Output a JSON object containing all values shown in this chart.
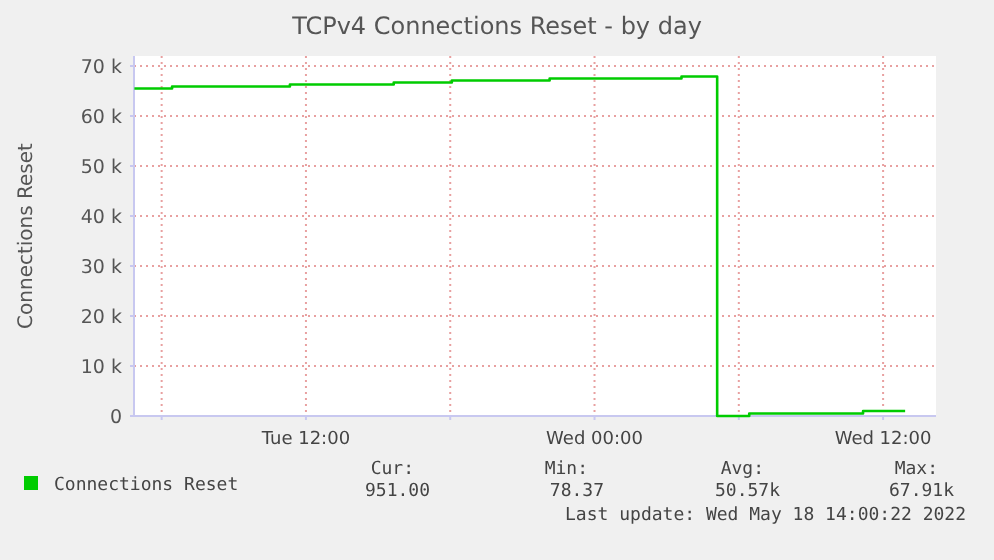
{
  "chart_data": {
    "type": "step",
    "title": "TCPv4 Connections Reset - by day",
    "ylabel": "Connections Reset",
    "x": [
      "2022-05-17T04:52",
      "2022-05-17T06:26",
      "2022-05-17T11:20",
      "2022-05-17T15:39",
      "2022-05-17T18:04",
      "2022-05-17T22:08",
      "2022-05-18T03:37",
      "2022-05-18T05:06",
      "2022-05-18T06:26",
      "2022-05-18T11:10",
      "2022-05-18T12:55"
    ],
    "series": [
      {
        "name": "Connections Reset",
        "color": "#00cc00",
        "values": [
          65500,
          65900,
          66300,
          66700,
          67100,
          67500,
          67900,
          0,
          500,
          1000,
          1000
        ]
      }
    ],
    "xlim": [
      "2022-05-17T04:51",
      "2022-05-18T14:12"
    ],
    "xticks": [
      {
        "value": "2022-05-17T06:00",
        "label": null
      },
      {
        "value": "2022-05-17T12:00",
        "label": "Tue 12:00"
      },
      {
        "value": "2022-05-17T18:00",
        "label": null
      },
      {
        "value": "2022-05-18T00:00",
        "label": "Wed 00:00"
      },
      {
        "value": "2022-05-18T06:00",
        "label": null
      },
      {
        "value": "2022-05-18T12:00",
        "label": "Wed 12:00"
      }
    ],
    "ylim": [
      0,
      72000
    ],
    "yticks": [
      {
        "value": 0,
        "label": "0"
      },
      {
        "value": 10000,
        "label": "10 k"
      },
      {
        "value": 20000,
        "label": "20 k"
      },
      {
        "value": 30000,
        "label": "30 k"
      },
      {
        "value": 40000,
        "label": "40 k"
      },
      {
        "value": 50000,
        "label": "50 k"
      },
      {
        "value": 60000,
        "label": "60 k"
      },
      {
        "value": 70000,
        "label": "70 k"
      }
    ],
    "grid": true,
    "legend": "bottom",
    "annotations": [
      "Cur:",
      "Min:",
      "Avg:",
      "Max:",
      "951.00",
      "78.37",
      "50.57k",
      "67.91k",
      "Last update: Wed May 18 14:00:22 2022"
    ]
  }
}
